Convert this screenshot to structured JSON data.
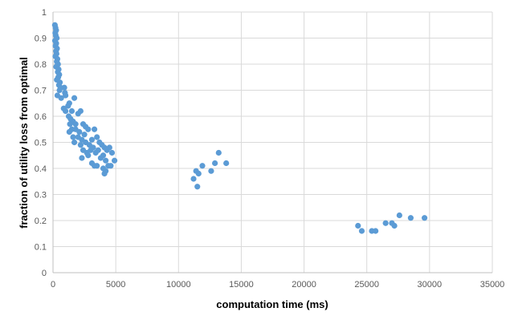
{
  "chart_data": {
    "type": "scatter",
    "title": "",
    "xlabel": "computation time (ms)",
    "ylabel": "fraction of utility loss from optimal",
    "xlim": [
      0,
      35000
    ],
    "ylim": [
      0,
      1
    ],
    "x_ticks": [
      0,
      5000,
      10000,
      15000,
      20000,
      25000,
      30000,
      35000
    ],
    "y_ticks": [
      0,
      0.1,
      0.2,
      0.3,
      0.4,
      0.5,
      0.6,
      0.7,
      0.8,
      0.9,
      1
    ],
    "grid": true,
    "legend": "none",
    "marker_color": "#5B9BD5",
    "series": [
      {
        "points": [
          [
            150,
            0.95
          ],
          [
            200,
            0.94
          ],
          [
            250,
            0.93
          ],
          [
            180,
            0.92
          ],
          [
            220,
            0.91
          ],
          [
            300,
            0.9
          ],
          [
            160,
            0.89
          ],
          [
            260,
            0.88
          ],
          [
            200,
            0.87
          ],
          [
            320,
            0.86
          ],
          [
            240,
            0.85
          ],
          [
            280,
            0.84
          ],
          [
            190,
            0.83
          ],
          [
            350,
            0.82
          ],
          [
            300,
            0.81
          ],
          [
            400,
            0.8
          ],
          [
            250,
            0.79
          ],
          [
            450,
            0.78
          ],
          [
            380,
            0.77
          ],
          [
            500,
            0.76
          ],
          [
            420,
            0.75
          ],
          [
            300,
            0.74
          ],
          [
            550,
            0.73
          ],
          [
            470,
            0.72
          ],
          [
            600,
            0.71
          ],
          [
            520,
            0.7
          ],
          [
            350,
            0.68
          ],
          [
            650,
            0.67
          ],
          [
            900,
            0.71
          ],
          [
            950,
            0.69
          ],
          [
            1000,
            0.68
          ],
          [
            850,
            0.63
          ],
          [
            1000,
            0.62
          ],
          [
            1300,
            0.65
          ],
          [
            1200,
            0.64
          ],
          [
            1500,
            0.62
          ],
          [
            1250,
            0.6
          ],
          [
            1400,
            0.59
          ],
          [
            1700,
            0.67
          ],
          [
            1600,
            0.58
          ],
          [
            1800,
            0.57
          ],
          [
            1350,
            0.57
          ],
          [
            2000,
            0.61
          ],
          [
            2200,
            0.62
          ],
          [
            2400,
            0.57
          ],
          [
            1500,
            0.55
          ],
          [
            1800,
            0.55
          ],
          [
            2100,
            0.54
          ],
          [
            2600,
            0.56
          ],
          [
            2800,
            0.55
          ],
          [
            1300,
            0.54
          ],
          [
            1600,
            0.52
          ],
          [
            2000,
            0.52
          ],
          [
            2300,
            0.51
          ],
          [
            2500,
            0.53
          ],
          [
            1700,
            0.5
          ],
          [
            2200,
            0.49
          ],
          [
            2600,
            0.5
          ],
          [
            2900,
            0.49
          ],
          [
            3100,
            0.51
          ],
          [
            3300,
            0.55
          ],
          [
            3500,
            0.52
          ],
          [
            2400,
            0.47
          ],
          [
            2700,
            0.46
          ],
          [
            3000,
            0.47
          ],
          [
            3200,
            0.48
          ],
          [
            3400,
            0.46
          ],
          [
            3700,
            0.5
          ],
          [
            3900,
            0.49
          ],
          [
            4100,
            0.48
          ],
          [
            2300,
            0.44
          ],
          [
            2800,
            0.45
          ],
          [
            3600,
            0.47
          ],
          [
            4300,
            0.47
          ],
          [
            4500,
            0.48
          ],
          [
            4700,
            0.46
          ],
          [
            4000,
            0.45
          ],
          [
            3800,
            0.44
          ],
          [
            4200,
            0.43
          ],
          [
            4900,
            0.43
          ],
          [
            3100,
            0.42
          ],
          [
            3300,
            0.41
          ],
          [
            3500,
            0.41
          ],
          [
            4000,
            0.4
          ],
          [
            4200,
            0.39
          ],
          [
            4400,
            0.41
          ],
          [
            4600,
            0.41
          ],
          [
            4100,
            0.38
          ],
          [
            11200,
            0.36
          ],
          [
            11400,
            0.39
          ],
          [
            11600,
            0.38
          ],
          [
            11500,
            0.33
          ],
          [
            11900,
            0.41
          ],
          [
            12600,
            0.39
          ],
          [
            12900,
            0.42
          ],
          [
            13200,
            0.46
          ],
          [
            13800,
            0.42
          ],
          [
            24300,
            0.18
          ],
          [
            24600,
            0.16
          ],
          [
            25400,
            0.16
          ],
          [
            25700,
            0.16
          ],
          [
            26500,
            0.19
          ],
          [
            27000,
            0.19
          ],
          [
            27200,
            0.18
          ],
          [
            27600,
            0.22
          ],
          [
            28500,
            0.21
          ],
          [
            29600,
            0.21
          ]
        ]
      }
    ]
  }
}
